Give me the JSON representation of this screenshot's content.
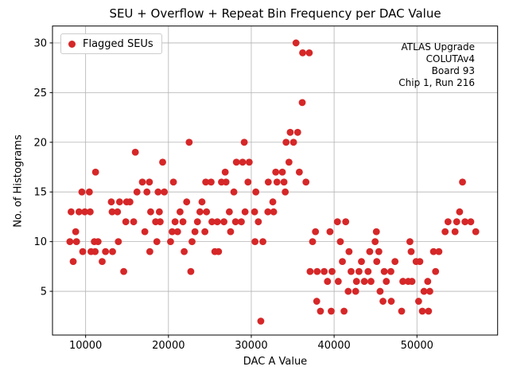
{
  "chart_data": {
    "type": "scatter",
    "title": "SEU + Overflow + Repeat Bin Frequency per DAC Value",
    "xlabel": "DAC A Value",
    "ylabel": "No. of Histograms",
    "legend": {
      "label": "Flagged SEUs",
      "position": "upper left"
    },
    "annotation": {
      "lines": [
        "ATLAS Upgrade",
        "COLUTAv4",
        "Board 93",
        "Chip 1, Run 216"
      ],
      "position": "upper right"
    },
    "marker_color": "#d62728",
    "grid": true,
    "grid_color": "#b3b3b3",
    "xlim": [
      6000,
      59740
    ],
    "ylim": [
      0.6,
      31.7
    ],
    "xticks": [
      10000,
      20000,
      30000,
      40000,
      50000
    ],
    "yticks": [
      5,
      10,
      15,
      20,
      25,
      30
    ],
    "points": [
      [
        8100,
        10
      ],
      [
        8250,
        13
      ],
      [
        8500,
        8
      ],
      [
        8800,
        11
      ],
      [
        8900,
        10
      ],
      [
        9200,
        13
      ],
      [
        9550,
        15
      ],
      [
        9650,
        9
      ],
      [
        9900,
        13
      ],
      [
        10450,
        15
      ],
      [
        10550,
        13
      ],
      [
        10650,
        9
      ],
      [
        11050,
        10
      ],
      [
        11150,
        9
      ],
      [
        11200,
        17
      ],
      [
        11500,
        10
      ],
      [
        12000,
        8
      ],
      [
        12400,
        9
      ],
      [
        13100,
        14
      ],
      [
        13200,
        13
      ],
      [
        13250,
        9
      ],
      [
        13850,
        13
      ],
      [
        13950,
        10
      ],
      [
        14100,
        14
      ],
      [
        14600,
        7
      ],
      [
        14850,
        12
      ],
      [
        14950,
        14
      ],
      [
        15350,
        14
      ],
      [
        15800,
        12
      ],
      [
        16000,
        19
      ],
      [
        16200,
        15
      ],
      [
        16850,
        16
      ],
      [
        17150,
        11
      ],
      [
        17400,
        15
      ],
      [
        17700,
        16
      ],
      [
        17750,
        9
      ],
      [
        17850,
        13
      ],
      [
        18450,
        12
      ],
      [
        18600,
        10
      ],
      [
        18750,
        15
      ],
      [
        18900,
        13
      ],
      [
        19000,
        12
      ],
      [
        19300,
        18
      ],
      [
        19500,
        15
      ],
      [
        20250,
        10
      ],
      [
        20450,
        11
      ],
      [
        20600,
        16
      ],
      [
        20800,
        12
      ],
      [
        21100,
        11
      ],
      [
        21400,
        13
      ],
      [
        21750,
        12
      ],
      [
        21900,
        9
      ],
      [
        22200,
        14
      ],
      [
        22500,
        20
      ],
      [
        22700,
        7
      ],
      [
        22850,
        10
      ],
      [
        23200,
        11
      ],
      [
        23500,
        12
      ],
      [
        23800,
        13
      ],
      [
        24050,
        14
      ],
      [
        24400,
        11
      ],
      [
        24500,
        16
      ],
      [
        24600,
        13
      ],
      [
        25150,
        16
      ],
      [
        25250,
        12
      ],
      [
        25600,
        9
      ],
      [
        25900,
        12
      ],
      [
        26050,
        9
      ],
      [
        26400,
        16
      ],
      [
        26700,
        12
      ],
      [
        26850,
        17
      ],
      [
        26950,
        16
      ],
      [
        27350,
        13
      ],
      [
        27500,
        11
      ],
      [
        27900,
        15
      ],
      [
        28100,
        12
      ],
      [
        28200,
        18
      ],
      [
        28800,
        12
      ],
      [
        28950,
        18
      ],
      [
        29150,
        20
      ],
      [
        29250,
        13
      ],
      [
        29600,
        16
      ],
      [
        29750,
        18
      ],
      [
        30400,
        13
      ],
      [
        30450,
        10
      ],
      [
        30550,
        15
      ],
      [
        30850,
        12
      ],
      [
        31150,
        2
      ],
      [
        31400,
        10
      ],
      [
        32000,
        13
      ],
      [
        32050,
        16
      ],
      [
        32600,
        14
      ],
      [
        32700,
        13
      ],
      [
        32950,
        17
      ],
      [
        33100,
        16
      ],
      [
        33750,
        17
      ],
      [
        33950,
        16
      ],
      [
        34100,
        15
      ],
      [
        34200,
        20
      ],
      [
        34550,
        18
      ],
      [
        34700,
        21
      ],
      [
        35100,
        20
      ],
      [
        35400,
        30
      ],
      [
        35600,
        21
      ],
      [
        35800,
        17
      ],
      [
        36150,
        24
      ],
      [
        36200,
        29
      ],
      [
        36600,
        16
      ],
      [
        37000,
        29
      ],
      [
        37100,
        7
      ],
      [
        37400,
        10
      ],
      [
        37750,
        11
      ],
      [
        37900,
        4
      ],
      [
        37950,
        7
      ],
      [
        38350,
        3
      ],
      [
        38800,
        7
      ],
      [
        39200,
        6
      ],
      [
        39500,
        11
      ],
      [
        39650,
        3
      ],
      [
        39750,
        7
      ],
      [
        40400,
        12
      ],
      [
        40500,
        6
      ],
      [
        40750,
        10
      ],
      [
        41000,
        8
      ],
      [
        41200,
        3
      ],
      [
        41400,
        12
      ],
      [
        41700,
        5
      ],
      [
        41800,
        9
      ],
      [
        42050,
        7
      ],
      [
        42600,
        5
      ],
      [
        42700,
        6
      ],
      [
        43000,
        7
      ],
      [
        43300,
        8
      ],
      [
        43650,
        6
      ],
      [
        44100,
        7
      ],
      [
        44300,
        9
      ],
      [
        44450,
        6
      ],
      [
        44950,
        10
      ],
      [
        45100,
        11
      ],
      [
        45150,
        8
      ],
      [
        45400,
        9
      ],
      [
        45550,
        5
      ],
      [
        45900,
        4
      ],
      [
        46050,
        7
      ],
      [
        46300,
        6
      ],
      [
        46850,
        7
      ],
      [
        46900,
        4
      ],
      [
        47350,
        8
      ],
      [
        48150,
        3
      ],
      [
        48300,
        6
      ],
      [
        48950,
        6
      ],
      [
        49150,
        10
      ],
      [
        49300,
        9
      ],
      [
        49400,
        6
      ],
      [
        49900,
        8
      ],
      [
        50200,
        4
      ],
      [
        50350,
        8
      ],
      [
        50650,
        3
      ],
      [
        50850,
        5
      ],
      [
        51300,
        6
      ],
      [
        51400,
        3
      ],
      [
        51550,
        5
      ],
      [
        52000,
        9
      ],
      [
        52250,
        7
      ],
      [
        52650,
        9
      ],
      [
        53400,
        11
      ],
      [
        53750,
        12
      ],
      [
        54600,
        11
      ],
      [
        54800,
        12
      ],
      [
        55150,
        13
      ],
      [
        55500,
        16
      ],
      [
        55800,
        12
      ],
      [
        56500,
        12
      ],
      [
        57100,
        11
      ]
    ]
  }
}
